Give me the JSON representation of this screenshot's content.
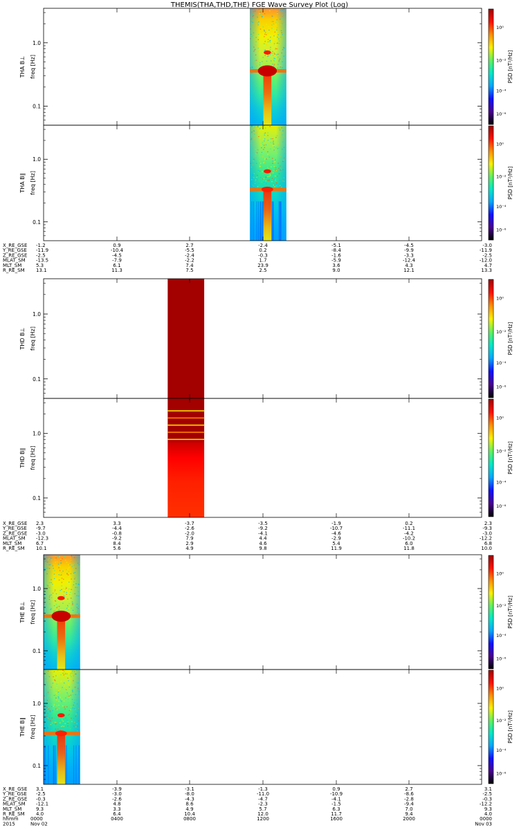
{
  "chart_data": {
    "type": "heatmap",
    "title": "THEMIS(THA,THD,THE) FGE Wave Survey Plot (Log)",
    "y_ticks": [
      "0.1",
      "1.0"
    ],
    "y_range_hz": [
      0.05,
      3.5
    ],
    "colorbar": {
      "label": "PSD [nT²/Hz]",
      "ticks": [
        "10⁰",
        "10⁻²",
        "10⁻⁴",
        "10⁻⁶"
      ],
      "gradient": [
        "#000000",
        "#4a0090",
        "#1010ff",
        "#00a8ff",
        "#00e8c8",
        "#60f060",
        "#f8f000",
        "#ff9000",
        "#ff1000",
        "#a00000"
      ]
    },
    "panels": [
      {
        "probe": "tha",
        "label": "THA B⊥",
        "unit": "freq [Hz]",
        "style": "spectrum",
        "time_span_hh": [
          11.3,
          13.3
        ]
      },
      {
        "probe": "tha",
        "label": "THA B∥",
        "unit": "freq [Hz]",
        "style": "spectrum-par",
        "time_span_hh": [
          11.3,
          13.3
        ]
      },
      {
        "probe": "thd",
        "label": "THD B⊥",
        "unit": "freq [Hz]",
        "style": "saturated",
        "time_span_hh": [
          6.8,
          8.8
        ]
      },
      {
        "probe": "thd",
        "label": "THD B∥",
        "unit": "freq [Hz]",
        "style": "banded",
        "time_span_hh": [
          6.8,
          8.8
        ]
      },
      {
        "probe": "the",
        "label": "THE B⊥",
        "unit": "freq [Hz]",
        "style": "spectrum",
        "time_span_hh": [
          0.0,
          2.0
        ]
      },
      {
        "probe": "the",
        "label": "THE B∥",
        "unit": "freq [Hz]",
        "style": "spectrum-par",
        "time_span_hh": [
          0.0,
          2.0
        ]
      }
    ],
    "ephemeris": [
      {
        "probe": "tha",
        "rows": [
          {
            "name": "X_RE_GSE",
            "values": [
              "-1.2",
              "0.9",
              "2.7",
              "-2.4",
              "-5.1",
              "-4.5",
              "-3.0"
            ]
          },
          {
            "name": "Y_RE_GSE",
            "values": [
              "-11.9",
              "-10.4",
              "-5.5",
              "0.2",
              "-8.4",
              "-9.9",
              "-11.9"
            ]
          },
          {
            "name": "Z_RE_GSE",
            "values": [
              "-2.5",
              "-4.5",
              "-2.4",
              "-0.3",
              "-1.6",
              "-3.3",
              "-2.5"
            ]
          },
          {
            "name": "MLAT_SM",
            "values": [
              "-13.5",
              "-7.9",
              "-2.2",
              "1.7",
              "-5.9",
              "-12.4",
              "-12.0"
            ]
          },
          {
            "name": "MLT_SM",
            "values": [
              "5.3",
              "6.1",
              "7.4",
              "23.9",
              "3.6",
              "4.3",
              "4.7"
            ]
          },
          {
            "name": "R_RE_SM",
            "values": [
              "13.1",
              "11.3",
              "7.5",
              "2.5",
              "9.0",
              "12.1",
              "13.3"
            ]
          }
        ]
      },
      {
        "probe": "thd",
        "rows": [
          {
            "name": "X_RE_GSE",
            "values": [
              "2.3",
              "3.3",
              "-3.7",
              "-3.5",
              "-1.9",
              "0.2",
              "2.3"
            ]
          },
          {
            "name": "Y_RE_GSE",
            "values": [
              "-9.7",
              "-4.4",
              "-2.6",
              "-9.2",
              "-10.7",
              "-11.1",
              "-9.3"
            ]
          },
          {
            "name": "Z_RE_GSE",
            "values": [
              "-3.0",
              "-0.8",
              "-2.0",
              "-4.1",
              "-4.6",
              "-4.2",
              "-3.0"
            ]
          },
          {
            "name": "MLAT_SM",
            "values": [
              "-12.3",
              "-9.2",
              "7.9",
              "4.4",
              "-2.9",
              "-10.2",
              "-12.2"
            ]
          },
          {
            "name": "MLT_SM",
            "values": [
              "6.7",
              "8.4",
              "2.9",
              "4.6",
              "5.4",
              "6.0",
              "6.8"
            ]
          },
          {
            "name": "R_RE_SM",
            "values": [
              "10.1",
              "5.6",
              "4.9",
              "9.8",
              "11.9",
              "11.8",
              "10.0"
            ]
          }
        ]
      },
      {
        "probe": "the",
        "rows": [
          {
            "name": "X_RE_GSE",
            "values": [
              "3.1",
              "-3.9",
              "-3.1",
              "-1.3",
              "0.9",
              "2.7",
              "3.1"
            ]
          },
          {
            "name": "Y_RE_GSE",
            "values": [
              "-2.5",
              "-3.0",
              "-8.0",
              "-11.0",
              "-10.9",
              "-8.6",
              "-2.5"
            ]
          },
          {
            "name": "Z_RE_GSE",
            "values": [
              "-0.3",
              "-2.6",
              "-4.3",
              "-4.7",
              "-4.1",
              "-2.8",
              "-0.3"
            ]
          },
          {
            "name": "MLAT_SM",
            "values": [
              "-12.1",
              "4.8",
              "8.6",
              "-2.3",
              "-1.5",
              "-9.4",
              "-12.2"
            ]
          },
          {
            "name": "MLT_SM",
            "values": [
              "9.3",
              "3.3",
              "4.9",
              "5.7",
              "6.3",
              "7.0",
              "9.3"
            ]
          },
          {
            "name": "R_RE_SM",
            "values": [
              "4.0",
              "6.4",
              "10.4",
              "12.0",
              "11.7",
              "9.4",
              "4.0"
            ]
          }
        ]
      }
    ],
    "time_axis": {
      "row_labels": [
        "hhmm",
        "2015"
      ],
      "hhmm": [
        "0000",
        "0400",
        "0800",
        "1200",
        "1600",
        "2000",
        "0000"
      ],
      "dates": [
        "Nov 02",
        "",
        "",
        "",
        "",
        "",
        "Nov 03"
      ],
      "range_hours": [
        0,
        24
      ]
    }
  }
}
